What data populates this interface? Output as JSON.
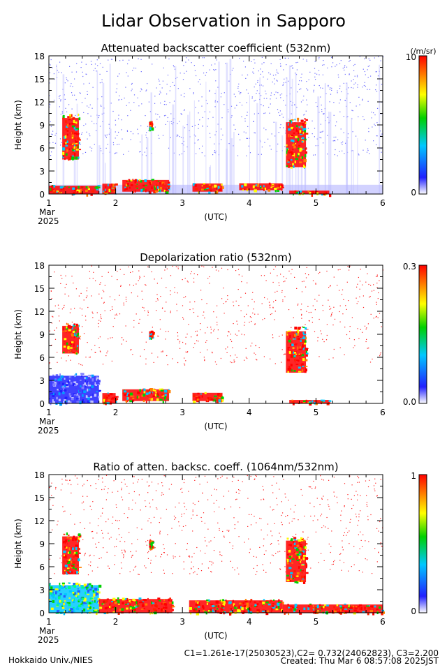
{
  "page": {
    "title": "Lidar Observation in Sapporo",
    "credit": "Hokkaido Univ./NIES",
    "calibration": "C1=1.261e-17(25030523),C2= 0.732(24062823), C3=2.200",
    "created": "Created: Thu Mar  6 08:57:08 2025JST"
  },
  "chart_data": [
    {
      "type": "heatmap",
      "title": "Attenuated backscatter coefficient (532nm)",
      "ylabel": "Height (km)",
      "xlabel": "(UTC)",
      "x_ticks": [
        "1",
        "2",
        "3",
        "4",
        "5",
        "6"
      ],
      "x_sub": [
        "Mar",
        "2025"
      ],
      "xlim": [
        1,
        6
      ],
      "y_ticks": [
        "0",
        "3",
        "6",
        "9",
        "12",
        "15",
        "18"
      ],
      "ylim": [
        0,
        18
      ],
      "colorbar": {
        "max_label": "10",
        "min_label": "0",
        "unit": "(/m/sr)"
      },
      "layers": [
        {
          "x": [
            1.0,
            1.75
          ],
          "y": [
            0,
            1.2
          ],
          "level": "high"
        },
        {
          "x": [
            1.2,
            1.45
          ],
          "y": [
            4.5,
            10.5
          ],
          "level": "high"
        },
        {
          "x": [
            1.8,
            2.0
          ],
          "y": [
            0,
            1.5
          ],
          "level": "high"
        },
        {
          "x": [
            2.1,
            2.8
          ],
          "y": [
            0.3,
            2.0
          ],
          "level": "high"
        },
        {
          "x": [
            2.5,
            2.55
          ],
          "y": [
            8.5,
            9.5
          ],
          "level": "high"
        },
        {
          "x": [
            3.15,
            3.6
          ],
          "y": [
            0.3,
            1.5
          ],
          "level": "high"
        },
        {
          "x": [
            3.85,
            4.5
          ],
          "y": [
            0.5,
            1.5
          ],
          "level": "high"
        },
        {
          "x": [
            4.55,
            4.85
          ],
          "y": [
            3.5,
            10.0
          ],
          "level": "high"
        },
        {
          "x": [
            4.6,
            5.2
          ],
          "y": [
            0.0,
            0.5
          ],
          "level": "high"
        }
      ]
    },
    {
      "type": "heatmap",
      "title": "Depolarization ratio (532nm)",
      "ylabel": "Height (km)",
      "xlabel": "(UTC)",
      "x_ticks": [
        "1",
        "2",
        "3",
        "4",
        "5",
        "6"
      ],
      "x_sub": [
        "Mar",
        "2025"
      ],
      "xlim": [
        1,
        6
      ],
      "y_ticks": [
        "0",
        "3",
        "6",
        "9",
        "12",
        "15",
        "18"
      ],
      "ylim": [
        0,
        18
      ],
      "colorbar": {
        "max_label": "0.3",
        "min_label": "0.0",
        "unit": ""
      },
      "layers": [
        {
          "x": [
            1.0,
            1.75
          ],
          "y": [
            0,
            4.0
          ],
          "level": "low"
        },
        {
          "x": [
            1.2,
            1.45
          ],
          "y": [
            6.5,
            10.5
          ],
          "level": "high"
        },
        {
          "x": [
            1.8,
            2.0
          ],
          "y": [
            0,
            1.5
          ],
          "level": "high"
        },
        {
          "x": [
            2.1,
            2.8
          ],
          "y": [
            0.3,
            2.0
          ],
          "level": "high"
        },
        {
          "x": [
            2.5,
            2.55
          ],
          "y": [
            8.5,
            9.5
          ],
          "level": "high"
        },
        {
          "x": [
            3.15,
            3.6
          ],
          "y": [
            0.3,
            1.5
          ],
          "level": "high"
        },
        {
          "x": [
            4.55,
            4.85
          ],
          "y": [
            4.0,
            10.0
          ],
          "level": "high"
        },
        {
          "x": [
            4.6,
            5.2
          ],
          "y": [
            0.0,
            0.5
          ],
          "level": "high"
        }
      ]
    },
    {
      "type": "heatmap",
      "title": "Ratio of atten. backsc. coeff. (1064nm/532nm)",
      "ylabel": "Height (km)",
      "xlabel": "(UTC)",
      "x_ticks": [
        "1",
        "2",
        "3",
        "4",
        "5",
        "6"
      ],
      "x_sub": [
        "Mar",
        "2025"
      ],
      "xlim": [
        1,
        6
      ],
      "y_ticks": [
        "0",
        "3",
        "6",
        "9",
        "12",
        "15",
        "18"
      ],
      "ylim": [
        0,
        18
      ],
      "colorbar": {
        "max_label": "1",
        "min_label": "0",
        "unit": ""
      },
      "layers": [
        {
          "x": [
            1.0,
            1.75
          ],
          "y": [
            0,
            4.0
          ],
          "level": "mid"
        },
        {
          "x": [
            1.2,
            1.45
          ],
          "y": [
            5.0,
            10.5
          ],
          "level": "high"
        },
        {
          "x": [
            1.75,
            2.85
          ],
          "y": [
            0,
            2.0
          ],
          "level": "high"
        },
        {
          "x": [
            2.5,
            2.55
          ],
          "y": [
            8.5,
            9.5
          ],
          "level": "high"
        },
        {
          "x": [
            3.1,
            4.5
          ],
          "y": [
            0,
            1.8
          ],
          "level": "high"
        },
        {
          "x": [
            4.55,
            4.85
          ],
          "y": [
            4.0,
            10.0
          ],
          "level": "high"
        },
        {
          "x": [
            4.5,
            6.0
          ],
          "y": [
            0,
            1.2
          ],
          "level": "high"
        }
      ]
    }
  ]
}
